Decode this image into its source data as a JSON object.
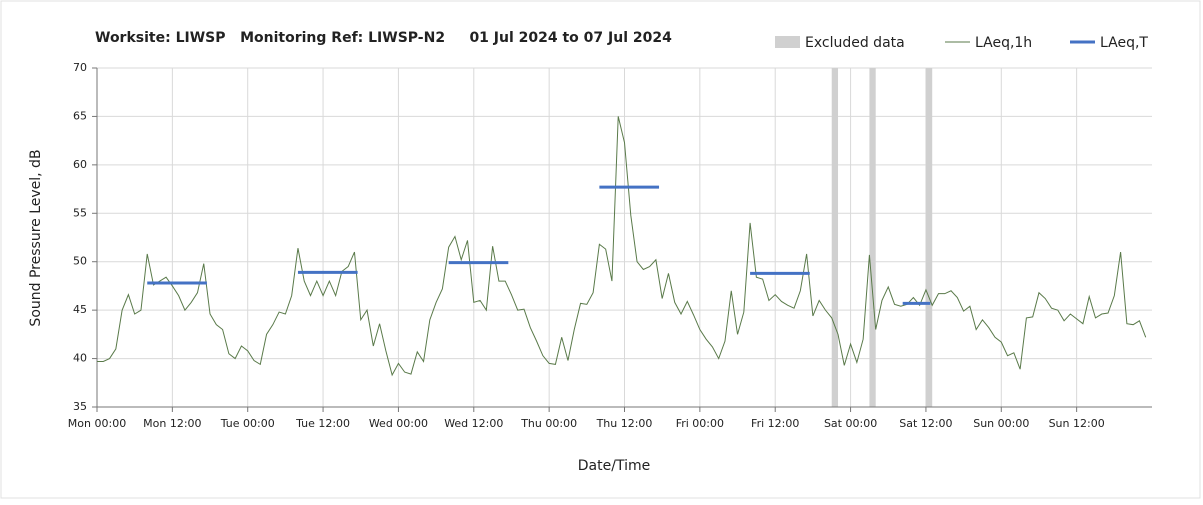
{
  "chart_data": {
    "type": "line",
    "title": "Worksite: LIWSP   Monitoring Ref: LIWSP-N2     01 Jul 2024 to 07 Jul 2024",
    "xlabel": "Date/Time",
    "ylabel": "Sound Pressure Level, dB",
    "xlim": [
      0,
      168
    ],
    "ylim": [
      35,
      70
    ],
    "xticks": [
      {
        "value": 0,
        "label": "Mon 00:00"
      },
      {
        "value": 12,
        "label": "Mon 12:00"
      },
      {
        "value": 24,
        "label": "Tue 00:00"
      },
      {
        "value": 36,
        "label": "Tue 12:00"
      },
      {
        "value": 48,
        "label": "Wed 00:00"
      },
      {
        "value": 60,
        "label": "Wed 12:00"
      },
      {
        "value": 72,
        "label": "Thu 00:00"
      },
      {
        "value": 84,
        "label": "Thu 12:00"
      },
      {
        "value": 96,
        "label": "Fri 00:00"
      },
      {
        "value": 108,
        "label": "Fri 12:00"
      },
      {
        "value": 120,
        "label": "Sat 00:00"
      },
      {
        "value": 132,
        "label": "Sat 12:00"
      },
      {
        "value": 144,
        "label": "Sun 00:00"
      },
      {
        "value": 156,
        "label": "Sun 12:00"
      }
    ],
    "yticks": [
      35,
      40,
      45,
      50,
      55,
      60,
      65,
      70
    ],
    "grid": true,
    "excluded": {
      "name": "Excluded data",
      "color": "#d0d0d0",
      "starts": [
        117,
        123,
        132
      ],
      "ends": [
        118,
        124,
        133
      ]
    },
    "series": [
      {
        "name": "LAeq,1h",
        "color": "#5a7a4a",
        "values": [
          39.7,
          39.7,
          40,
          41,
          45,
          46.6,
          44.6,
          45,
          50.8,
          47.6,
          48,
          48.4,
          47.5,
          46.5,
          45,
          45.8,
          46.8,
          49.8,
          44.6,
          43.5,
          43,
          40.5,
          40,
          41.3,
          40.8,
          39.8,
          39.4,
          42.5,
          43.5,
          44.8,
          44.6,
          46.5,
          51.4,
          48,
          46.5,
          48,
          46.5,
          48,
          46.5,
          49,
          49.5,
          51,
          44,
          45,
          41.3,
          43.6,
          40.8,
          38.3,
          39.5,
          38.6,
          38.4,
          40.7,
          39.7,
          44,
          45.8,
          47.2,
          51.5,
          52.6,
          50.2,
          52.2,
          45.8,
          46,
          45,
          51.6,
          48,
          48,
          46.6,
          45,
          45.1,
          43.2,
          41.8,
          40.3,
          39.5,
          39.4,
          42.2,
          39.8,
          43,
          45.7,
          45.6,
          46.8,
          51.8,
          51.3,
          48,
          65,
          62.3,
          54.8,
          50,
          49.2,
          49.5,
          50.2,
          46.2,
          48.8,
          45.8,
          44.6,
          45.9,
          44.5,
          43,
          42,
          41.2,
          40,
          41.8,
          47,
          42.5,
          44.8,
          54,
          48.4,
          48.2,
          46,
          46.6,
          45.9,
          45.5,
          45.2,
          47,
          50.8,
          44.4,
          46,
          45,
          44.2,
          42.5,
          39.3,
          41.5,
          39.6,
          42,
          50.7,
          43,
          46,
          47.4,
          45.6,
          45.4,
          45.6,
          46.3,
          45.5,
          47.1,
          45.5,
          46.7,
          46.7,
          47,
          46.3,
          44.9,
          45.4,
          43,
          44,
          43.2,
          42.2,
          41.7,
          40.3,
          40.6,
          38.9,
          44.2,
          44.3,
          46.8,
          46.2,
          45.2,
          45,
          43.9,
          44.6,
          44.1,
          43.6,
          46.4,
          44.2,
          44.6,
          44.7,
          46.5,
          51,
          43.6,
          43.5,
          43.9,
          42.2
        ]
      },
      {
        "name": "LAeq,T",
        "color": "#4472c4",
        "starts": [
          8,
          32,
          56,
          80,
          104,
          128.3
        ],
        "ends": [
          17.5,
          41.5,
          65.5,
          89.5,
          113.5,
          132.7
        ],
        "values": [
          47.8,
          48.9,
          49.9,
          57.7,
          48.8,
          45.7
        ]
      }
    ]
  }
}
